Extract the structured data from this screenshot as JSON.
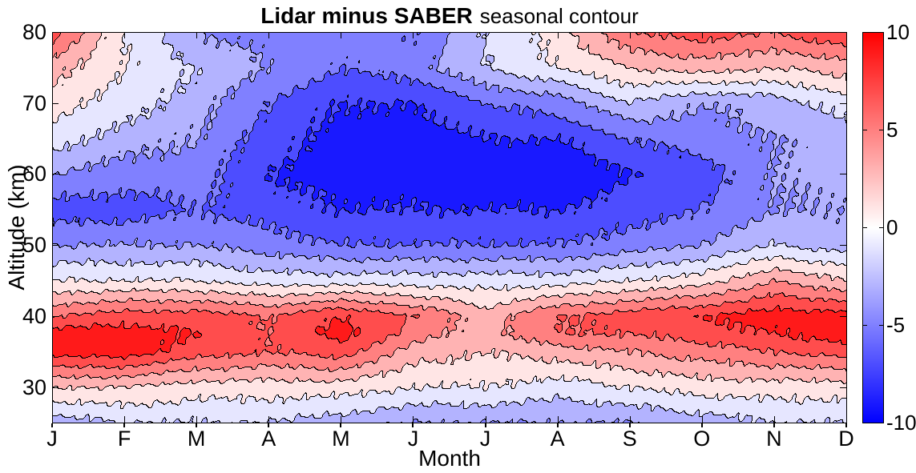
{
  "figure": {
    "background": "#ffffff"
  },
  "chart_data": {
    "type": "heatmap",
    "variant": "filled-contour",
    "title": "Lidar minus SABER",
    "subtitle": "seasonal contour",
    "xlabel": "Month",
    "ylabel": "Altitude (km)",
    "x_tick_labels": [
      "J",
      "F",
      "M",
      "A",
      "M",
      "J",
      "J",
      "A",
      "S",
      "O",
      "N",
      "D"
    ],
    "y_ticks": [
      30,
      40,
      50,
      60,
      70,
      80
    ],
    "ylim": [
      25,
      80
    ],
    "grid": false,
    "legend_position": "none",
    "colorbar": {
      "position": "right",
      "min": -10,
      "max": 10,
      "ticks": [
        10,
        5,
        0,
        -5,
        -10
      ],
      "tick_labels": [
        "10",
        "5",
        "0",
        "-5",
        "-10"
      ],
      "colormap": {
        "negative": "#0000ff",
        "zero": "#ffffff",
        "positive": "#ff0000"
      }
    },
    "contour": {
      "band_step": 2,
      "line_color": "#000000",
      "line_levels": [
        -8,
        -6,
        -4,
        -2,
        0,
        2,
        4,
        6,
        8
      ]
    },
    "altitudes_km": [
      80,
      75,
      70,
      65,
      60,
      55,
      50,
      45,
      40,
      37.5,
      35,
      30,
      25
    ],
    "values_lidar_minus_saber": [
      [
        7,
        0,
        -4,
        -5,
        -5,
        -6,
        -2,
        1,
        6,
        7,
        6,
        8
      ],
      [
        3,
        0,
        -2,
        -4,
        -6,
        -5,
        -2,
        0,
        2,
        3,
        2,
        3
      ],
      [
        1,
        -1,
        -3,
        -6,
        -8,
        -8,
        -6,
        -5,
        -2,
        -4,
        -3,
        -1
      ],
      [
        -1,
        -3,
        -4,
        -7,
        -9,
        -9,
        -8,
        -8,
        -6,
        -5,
        -4,
        -3
      ],
      [
        -4,
        -5,
        -5,
        -8,
        -9,
        -9,
        -10,
        -10,
        -8,
        -7,
        -4,
        -3
      ],
      [
        -7,
        -7,
        -6,
        -7,
        -8,
        -8,
        -8,
        -8,
        -7,
        -6,
        -4,
        -4
      ],
      [
        -4,
        -4,
        -4,
        -5,
        -6,
        -6,
        -6,
        -6,
        -5,
        -4,
        -2,
        -3
      ],
      [
        0,
        0,
        0,
        -1,
        -1,
        -1,
        -1,
        -1,
        0,
        1,
        4,
        2
      ],
      [
        6,
        7,
        7,
        6,
        8,
        6,
        3,
        6,
        7,
        8,
        9,
        9
      ],
      [
        9,
        9,
        8,
        6,
        9,
        5,
        3,
        6,
        6,
        7,
        8,
        9
      ],
      [
        9,
        9,
        7,
        6,
        7,
        3,
        2,
        3,
        4,
        5,
        6,
        7
      ],
      [
        2,
        2,
        1,
        1,
        1,
        0,
        0,
        -1,
        0,
        1,
        1,
        1
      ],
      [
        -3,
        -2,
        -2,
        -2,
        -3,
        -4,
        -4,
        -4,
        -4,
        -3,
        -2,
        -2
      ]
    ]
  }
}
